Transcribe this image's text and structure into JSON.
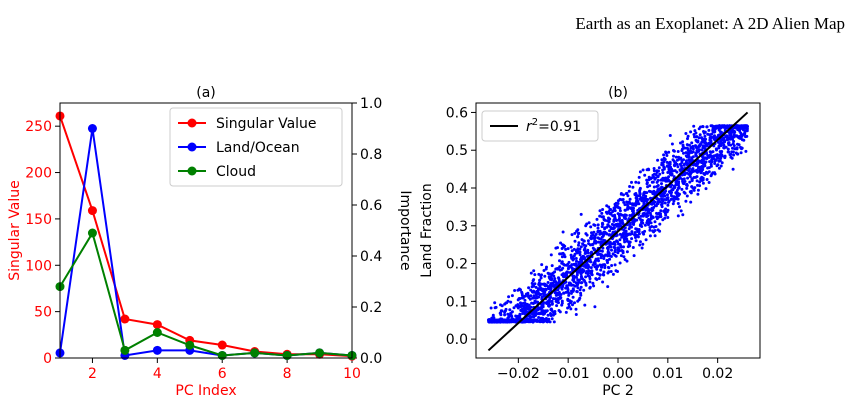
{
  "header": {
    "title": "Earth as an Exoplanet: A 2D Alien Map"
  },
  "colors": {
    "singular": "#ff0000",
    "land": "#0000ff",
    "cloud": "#008000",
    "fit": "#000000"
  },
  "chart_data": [
    {
      "id": "a",
      "type": "line",
      "title": "(a)",
      "xlabel": "PC Index",
      "ylabel": "Singular Value",
      "y2label": "Importance",
      "xlim": [
        1,
        10
      ],
      "ylim": [
        0,
        275
      ],
      "y2lim": [
        0,
        1.0
      ],
      "xticks": [
        "2",
        "4",
        "6",
        "8",
        "10"
      ],
      "yticks": [
        "0",
        "50",
        "100",
        "150",
        "200",
        "250"
      ],
      "y2ticks": [
        "0.0",
        "0.2",
        "0.4",
        "0.6",
        "0.8",
        "1.0"
      ],
      "legend_position": "top-right",
      "x": [
        1,
        2,
        3,
        4,
        5,
        6,
        7,
        8,
        9,
        10
      ],
      "series": [
        {
          "name": "Singular Value",
          "axis": "left",
          "color": "#ff0000",
          "values": [
            261,
            159,
            42,
            36,
            19,
            14,
            7,
            4,
            4,
            2
          ]
        },
        {
          "name": "Land/Ocean",
          "axis": "right",
          "color": "#0000ff",
          "values": [
            0.02,
            0.9,
            0.01,
            0.03,
            0.03,
            0.01,
            0.02,
            0.01,
            0.02,
            0.01
          ]
        },
        {
          "name": "Cloud",
          "axis": "right",
          "color": "#008000",
          "values": [
            0.28,
            0.49,
            0.03,
            0.1,
            0.05,
            0.01,
            0.02,
            0.01,
            0.02,
            0.01
          ]
        }
      ]
    },
    {
      "id": "b",
      "type": "scatter",
      "title": "(b)",
      "xlabel": "PC 2",
      "ylabel": "Land Fraction",
      "xlim": [
        -0.0285,
        0.0285
      ],
      "ylim": [
        -0.05,
        0.625
      ],
      "xticks": [
        "−0.02",
        "−0.01",
        "0.00",
        "0.01",
        "0.02"
      ],
      "xtick_values": [
        -0.02,
        -0.01,
        0.0,
        0.01,
        0.02
      ],
      "yticks": [
        "0.0",
        "0.1",
        "0.2",
        "0.3",
        "0.4",
        "0.5",
        "0.6"
      ],
      "legend_position": "top-left",
      "legend_label_r": "r",
      "legend_label_sup": "2",
      "legend_label_value": "=0.91",
      "r2": 0.91,
      "point_color": "#0000ff",
      "fit_line": {
        "x": [
          -0.026,
          0.026
        ],
        "y": [
          -0.03,
          0.6
        ]
      },
      "scatter_envelope": {
        "x_range": [
          -0.026,
          0.026
        ],
        "y_floor": 0.045,
        "y_ceiling": 0.565
      }
    }
  ]
}
